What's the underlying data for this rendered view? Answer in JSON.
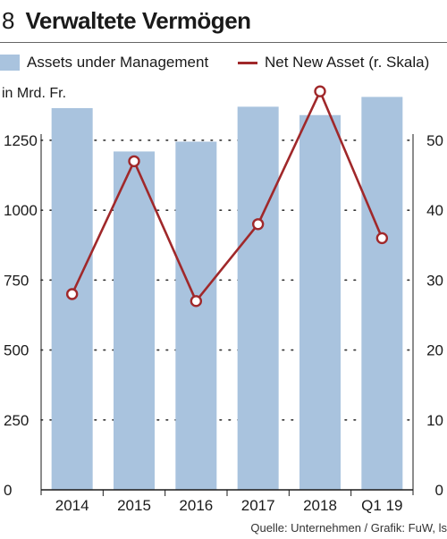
{
  "header": {
    "figure_number": "8",
    "title": "Verwaltete Vermögen"
  },
  "legend": {
    "bars_label": "Assets under Management",
    "line_label": "Net New Asset (r. Skala)"
  },
  "unit_label": "in Mrd. Fr.",
  "source": "Quelle: Unternehmen / Grafik: FuW, ls",
  "colors": {
    "bar": "#a9c3de",
    "line": "#a0282a",
    "marker_fill": "#ffffff"
  },
  "chart_data": {
    "type": "bar",
    "categories": [
      "2014",
      "2015",
      "2016",
      "2017",
      "2018",
      "Q1 19"
    ],
    "series": [
      {
        "name": "Assets under Management",
        "type": "bar",
        "axis": "left",
        "values": [
          1365,
          1210,
          1245,
          1370,
          1340,
          1405
        ]
      },
      {
        "name": "Net New Asset (r. Skala)",
        "type": "line",
        "axis": "right",
        "values": [
          28,
          47,
          27,
          38,
          57,
          36
        ]
      }
    ],
    "y_left": {
      "lim": [
        0,
        1400
      ],
      "ticks": [
        0,
        250,
        500,
        750,
        1000,
        1250
      ],
      "tick_labels": [
        "0",
        "250",
        "500",
        "750",
        "1000",
        "1250"
      ]
    },
    "y_right": {
      "lim": [
        0,
        56
      ],
      "ticks": [
        0,
        10,
        20,
        30,
        40,
        50
      ],
      "tick_labels": [
        "0",
        "10",
        "20",
        "30",
        "40",
        "50"
      ]
    },
    "grid": "dotted horizontal",
    "legend_position": "top"
  }
}
